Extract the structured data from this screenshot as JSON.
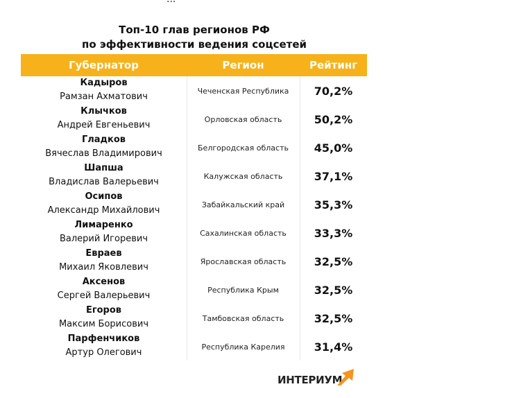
{
  "top_line": "...",
  "title": {
    "line1": "Топ-10 глав регионов РФ",
    "line2": "по эффективности ведения соцсетей"
  },
  "chart_data": {
    "type": "table",
    "columns": [
      "Губернатор",
      "Регион",
      "Рейтинг"
    ],
    "rows": [
      {
        "surname": "Кадыров",
        "given": "Рамзан Ахматович",
        "region": "Чеченская Республика",
        "rating": "70,2%"
      },
      {
        "surname": "Клычков",
        "given": "Андрей Евгеньевич",
        "region": "Орловская область",
        "rating": "50,2%"
      },
      {
        "surname": "Гладков",
        "given": "Вячеслав Владимирович",
        "region": "Белгородская область",
        "rating": "45,0%"
      },
      {
        "surname": "Шапша",
        "given": "Владислав Валерьевич",
        "region": "Калужская область",
        "rating": "37,1%"
      },
      {
        "surname": "Осипов",
        "given": "Александр Михайлович",
        "region": "Забайкальский край",
        "rating": "35,3%"
      },
      {
        "surname": "Лимаренко",
        "given": "Валерий Игоревич",
        "region": "Сахалинская область",
        "rating": "33,3%"
      },
      {
        "surname": "Евраев",
        "given": "Михаил Яковлевич",
        "region": "Ярославская область",
        "rating": "32,5%"
      },
      {
        "surname": "Аксенов",
        "given": "Сергей Валерьевич",
        "region": "Республика Крым",
        "rating": "32,5%"
      },
      {
        "surname": "Егоров",
        "given": "Максим Борисович",
        "region": "Тамбовская область",
        "rating": "32,5%"
      },
      {
        "surname": "Парфенчиков",
        "given": "Артур Олегович",
        "region": "Республика Карелия",
        "rating": "31,4%"
      }
    ]
  },
  "logo": {
    "text": "ИНТЕРИУМ",
    "icon": "orange-arrow-icon"
  },
  "colors": {
    "header": "#f7b21b",
    "logo_arrow": "#f7941d"
  }
}
